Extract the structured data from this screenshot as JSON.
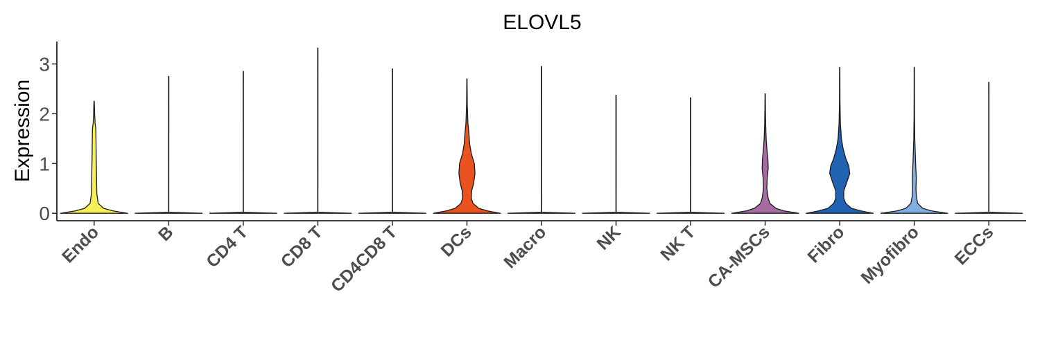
{
  "chart_data": {
    "type": "violin",
    "title": "ELOVL5",
    "xlabel": "",
    "ylabel": "Expression",
    "ylim": [
      -0.15,
      3.45
    ],
    "yticks": [
      0,
      1,
      2,
      3
    ],
    "grid": false,
    "legend": "none",
    "categories": [
      "Endo",
      "B",
      "CD4 T",
      "CD8 T",
      "CD4CD8 T",
      "DCs",
      "Macro",
      "NK",
      "NK T",
      "CA-MSCs",
      "Fibro",
      "Myofibro",
      "ECCs"
    ],
    "series": [
      {
        "category": "Endo",
        "color": "#f7ef57",
        "max": 2.25,
        "density": [
          [
            0,
            1.0
          ],
          [
            0.05,
            0.55
          ],
          [
            0.1,
            0.28
          ],
          [
            0.2,
            0.12
          ],
          [
            0.4,
            0.08
          ],
          [
            0.6,
            0.075
          ],
          [
            0.8,
            0.07
          ],
          [
            1.0,
            0.065
          ],
          [
            1.2,
            0.06
          ],
          [
            1.5,
            0.055
          ],
          [
            1.7,
            0.05
          ],
          [
            1.8,
            0.03
          ],
          [
            2.0,
            0.015
          ],
          [
            2.25,
            0.005
          ]
        ]
      },
      {
        "category": "B",
        "color": "#ffffff",
        "max": 2.75,
        "density": [
          [
            0,
            1.0
          ],
          [
            0.02,
            0.0
          ],
          [
            2.75,
            0.005
          ]
        ]
      },
      {
        "category": "CD4 T",
        "color": "#ffffff",
        "max": 2.85,
        "density": [
          [
            0,
            1.0
          ],
          [
            0.02,
            0.0
          ],
          [
            2.85,
            0.005
          ]
        ]
      },
      {
        "category": "CD8 T",
        "color": "#ffffff",
        "max": 3.32,
        "density": [
          [
            0,
            1.0
          ],
          [
            0.02,
            0.0
          ],
          [
            3.32,
            0.005
          ]
        ]
      },
      {
        "category": "CD4CD8 T",
        "color": "#ffffff",
        "max": 2.9,
        "density": [
          [
            0,
            1.0
          ],
          [
            0.02,
            0.0
          ],
          [
            2.9,
            0.005
          ]
        ]
      },
      {
        "category": "DCs",
        "color": "#e8531f",
        "max": 2.7,
        "density": [
          [
            0,
            1.0
          ],
          [
            0.05,
            0.6
          ],
          [
            0.1,
            0.35
          ],
          [
            0.2,
            0.18
          ],
          [
            0.3,
            0.13
          ],
          [
            0.45,
            0.14
          ],
          [
            0.6,
            0.2
          ],
          [
            0.8,
            0.24
          ],
          [
            1.0,
            0.22
          ],
          [
            1.2,
            0.13
          ],
          [
            1.4,
            0.08
          ],
          [
            1.6,
            0.06
          ],
          [
            1.8,
            0.03
          ],
          [
            2.2,
            0.01
          ],
          [
            2.7,
            0.004
          ]
        ]
      },
      {
        "category": "Macro",
        "color": "#ffffff",
        "max": 2.95,
        "density": [
          [
            0,
            1.0
          ],
          [
            0.02,
            0.0
          ],
          [
            2.95,
            0.005
          ]
        ]
      },
      {
        "category": "NK",
        "color": "#ffffff",
        "max": 2.37,
        "density": [
          [
            0,
            1.0
          ],
          [
            0.02,
            0.0
          ],
          [
            2.37,
            0.005
          ]
        ]
      },
      {
        "category": "NK T",
        "color": "#ffffff",
        "max": 2.32,
        "density": [
          [
            0,
            1.0
          ],
          [
            0.02,
            0.0
          ],
          [
            2.32,
            0.005
          ]
        ]
      },
      {
        "category": "CA-MSCs",
        "color": "#a76ba3",
        "max": 2.4,
        "density": [
          [
            0,
            1.0
          ],
          [
            0.05,
            0.55
          ],
          [
            0.1,
            0.32
          ],
          [
            0.2,
            0.14
          ],
          [
            0.3,
            0.09
          ],
          [
            0.5,
            0.05
          ],
          [
            0.7,
            0.06
          ],
          [
            0.9,
            0.09
          ],
          [
            1.1,
            0.08
          ],
          [
            1.3,
            0.05
          ],
          [
            1.5,
            0.03
          ],
          [
            1.8,
            0.015
          ],
          [
            2.1,
            0.008
          ],
          [
            2.4,
            0.004
          ]
        ]
      },
      {
        "category": "Fibro",
        "color": "#1f63b2",
        "max": 2.93,
        "density": [
          [
            0,
            1.0
          ],
          [
            0.05,
            0.62
          ],
          [
            0.1,
            0.35
          ],
          [
            0.2,
            0.18
          ],
          [
            0.3,
            0.12
          ],
          [
            0.45,
            0.12
          ],
          [
            0.6,
            0.2
          ],
          [
            0.8,
            0.3
          ],
          [
            0.95,
            0.27
          ],
          [
            1.1,
            0.18
          ],
          [
            1.3,
            0.1
          ],
          [
            1.5,
            0.05
          ],
          [
            1.8,
            0.02
          ],
          [
            2.2,
            0.008
          ],
          [
            2.93,
            0.004
          ]
        ]
      },
      {
        "category": "Myofibro",
        "color": "#7fafe0",
        "max": 2.93,
        "density": [
          [
            0,
            1.0
          ],
          [
            0.05,
            0.5
          ],
          [
            0.1,
            0.25
          ],
          [
            0.2,
            0.1
          ],
          [
            0.35,
            0.06
          ],
          [
            0.5,
            0.05
          ],
          [
            0.7,
            0.06
          ],
          [
            0.85,
            0.05
          ],
          [
            1.0,
            0.04
          ],
          [
            1.2,
            0.03
          ],
          [
            1.5,
            0.015
          ],
          [
            1.9,
            0.008
          ],
          [
            2.4,
            0.005
          ],
          [
            2.93,
            0.003
          ]
        ]
      },
      {
        "category": "ECCs",
        "color": "#ffffff",
        "max": 2.63,
        "density": [
          [
            0,
            1.0
          ],
          [
            0.02,
            0.0
          ],
          [
            2.63,
            0.005
          ]
        ]
      }
    ]
  }
}
